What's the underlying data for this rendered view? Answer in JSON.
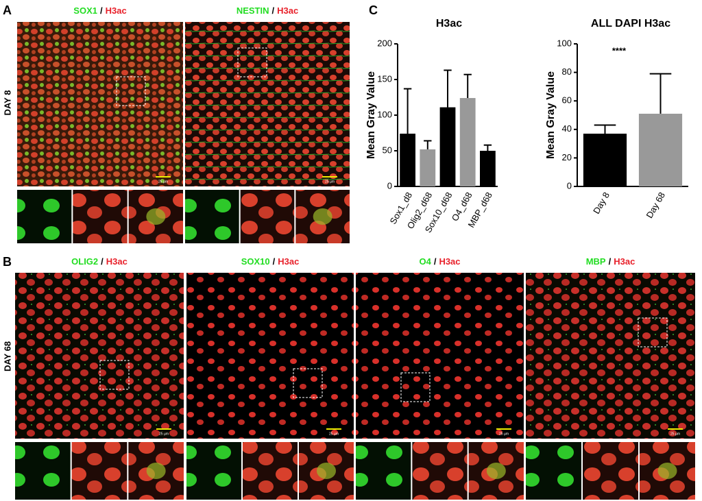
{
  "panel_labels": [
    "A",
    "B",
    "C"
  ],
  "panel_a": {
    "row_label": "DAY 8",
    "images": [
      {
        "marker": "SOX1",
        "separator": "/",
        "counterstain": "H3ac"
      },
      {
        "marker": "NESTIN",
        "separator": "/",
        "counterstain": "H3ac"
      }
    ]
  },
  "panel_b": {
    "row_label": "DAY 68",
    "images": [
      {
        "marker": "OLIG2",
        "separator": "/",
        "counterstain": "H3ac"
      },
      {
        "marker": "SOX10",
        "separator": "/",
        "counterstain": "H3ac"
      },
      {
        "marker": "O4",
        "separator": "/",
        "counterstain": "H3ac"
      },
      {
        "marker": "MBP",
        "separator": "/",
        "counterstain": "H3ac"
      }
    ]
  },
  "scale_bars": [
    "25 µm",
    "10 µm"
  ],
  "chart_data": [
    {
      "type": "bar",
      "title": "H3ac",
      "ylabel": "Mean Gray Value",
      "categories": [
        "Sox1_d8",
        "Olig2_d68",
        "Sox10_d68",
        "O4_d68",
        "MBP_d68"
      ],
      "values": [
        74,
        52,
        111,
        124,
        50
      ],
      "errors": [
        63,
        12,
        52,
        33,
        8
      ],
      "colors": [
        "#000000",
        "#999999",
        "#000000",
        "#999999",
        "#000000"
      ],
      "ylim": [
        0,
        200
      ],
      "yticks": [
        0,
        50,
        100,
        150,
        200
      ]
    },
    {
      "type": "bar",
      "title": "ALL DAPI H3ac",
      "ylabel": "Mean Gray Value",
      "categories": [
        "Day 8",
        "Day 68"
      ],
      "values": [
        37,
        51
      ],
      "errors": [
        6,
        28
      ],
      "colors": [
        "#000000",
        "#999999"
      ],
      "annotation": "****",
      "ylim": [
        0,
        100
      ],
      "yticks": [
        0,
        20,
        40,
        60,
        80,
        100
      ]
    }
  ]
}
